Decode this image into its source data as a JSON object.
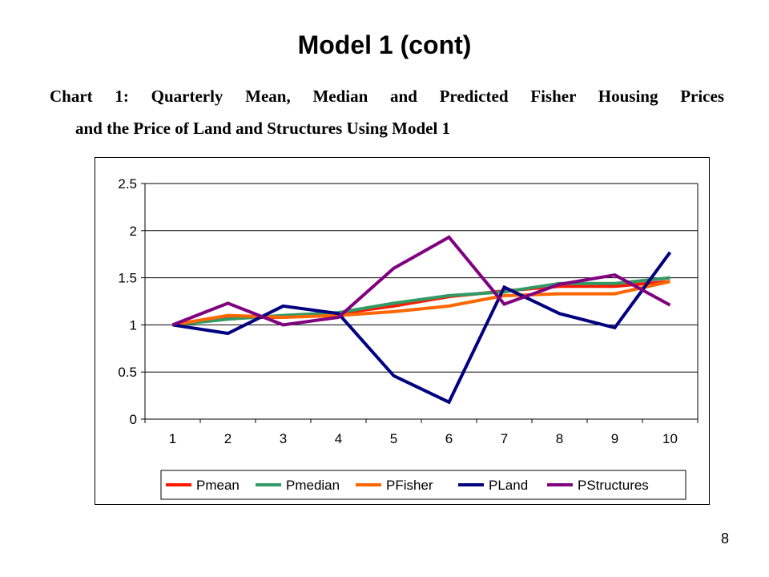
{
  "slide": {
    "title": "Model 1 (cont)",
    "caption_line1": "Chart 1: Quarterly Mean, Median and Predicted Fisher Housing Prices",
    "caption_line2": "and the Price of Land and Structures Using Model 1",
    "page_number": "8"
  },
  "chart_data": {
    "type": "line",
    "title": "",
    "xlabel": "",
    "ylabel": "",
    "categories": [
      "1",
      "2",
      "3",
      "4",
      "5",
      "6",
      "7",
      "8",
      "9",
      "10"
    ],
    "ylim": [
      0,
      2.5
    ],
    "yticks": [
      "0",
      "0.5",
      "1",
      "1.5",
      "2",
      "2.5"
    ],
    "grid": true,
    "legend": "bottom",
    "series": [
      {
        "name": "Pmean",
        "color": "#ff1a00",
        "values": [
          1.0,
          1.08,
          1.08,
          1.12,
          1.2,
          1.3,
          1.36,
          1.41,
          1.41,
          1.46
        ]
      },
      {
        "name": "Pmedian",
        "color": "#339966",
        "values": [
          1.0,
          1.06,
          1.1,
          1.13,
          1.23,
          1.31,
          1.35,
          1.44,
          1.44,
          1.5
        ]
      },
      {
        "name": "PFisher",
        "color": "#ff6600",
        "values": [
          1.0,
          1.1,
          1.08,
          1.1,
          1.14,
          1.2,
          1.31,
          1.33,
          1.33,
          1.46
        ]
      },
      {
        "name": "PLand",
        "color": "#000080",
        "values": [
          1.0,
          0.91,
          1.2,
          1.12,
          0.46,
          0.18,
          1.4,
          1.12,
          0.97,
          1.77
        ]
      },
      {
        "name": "PStructures",
        "color": "#800080",
        "values": [
          1.0,
          1.23,
          1.0,
          1.08,
          1.6,
          1.93,
          1.22,
          1.43,
          1.53,
          1.21
        ]
      }
    ]
  }
}
